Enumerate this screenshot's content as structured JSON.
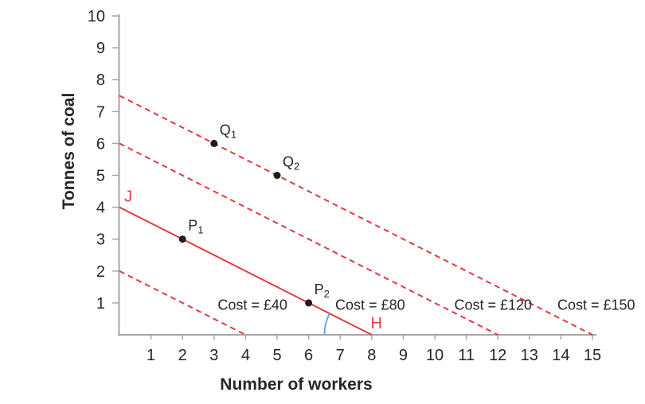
{
  "chart_data": {
    "type": "line",
    "title": "",
    "xlabel": "Number of workers",
    "ylabel": "Tonnes of coal",
    "xlim": [
      0,
      15.6
    ],
    "ylim": [
      0,
      10
    ],
    "xticks": [
      1,
      2,
      3,
      4,
      5,
      6,
      7,
      8,
      9,
      10,
      11,
      12,
      13,
      14,
      15
    ],
    "yticks": [
      1,
      2,
      3,
      4,
      5,
      6,
      7,
      8,
      9,
      10
    ],
    "grid": false,
    "series": [
      {
        "name": "cost-40",
        "label": "Cost = £40",
        "style": "dashed",
        "points": [
          [
            0,
            2
          ],
          [
            4,
            0
          ]
        ],
        "label_x": 4.22,
        "label_y": 0.93
      },
      {
        "name": "cost-80",
        "label": "Cost = £80",
        "style": "solid",
        "points": [
          [
            0,
            4
          ],
          [
            8,
            0
          ]
        ],
        "label_x": 7.95,
        "label_y": 0.93
      },
      {
        "name": "cost-120",
        "label": "Cost = £120",
        "style": "dashed",
        "points": [
          [
            0,
            6
          ],
          [
            12,
            0
          ]
        ],
        "label_x": 11.85,
        "label_y": 0.93
      },
      {
        "name": "cost-150",
        "label": "Cost = £150",
        "style": "dashed",
        "points": [
          [
            0,
            7.5
          ],
          [
            15,
            0
          ]
        ],
        "label_x": 15.12,
        "label_y": 0.93
      }
    ],
    "line_endpoint_labels": [
      {
        "name": "J",
        "text": "J",
        "x": 0.28,
        "y": 4.35
      },
      {
        "name": "H",
        "text": "H",
        "x": 8.15,
        "y": 0.38
      }
    ],
    "points": [
      {
        "name": "Q1",
        "base": "Q",
        "sub": "1",
        "x": 3,
        "y": 6
      },
      {
        "name": "Q2",
        "base": "Q",
        "sub": "2",
        "x": 5,
        "y": 5
      },
      {
        "name": "P1",
        "base": "P",
        "sub": "1",
        "x": 2,
        "y": 3
      },
      {
        "name": "P2",
        "base": "P",
        "sub": "2",
        "x": 6,
        "y": 1
      }
    ],
    "angle_arc": {
      "vertex_x": 8,
      "vertex_y": 0,
      "radius": 1.5,
      "note": "angle between line JH and x-axis at H"
    },
    "colors": {
      "isocost_red": "#e23a40",
      "arc_blue": "#64aed4",
      "axis_gray": "#a6a6a6",
      "point_black": "#1c1c1c",
      "text_dark": "#262626"
    }
  }
}
